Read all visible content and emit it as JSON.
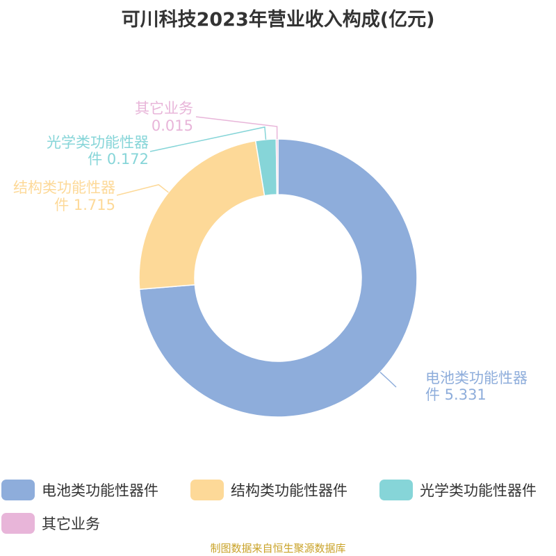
{
  "chart_data": {
    "type": "pie",
    "title": "可川科技2023年营业收入构成(亿元)",
    "categories": [
      "电池类功能性器件",
      "结构类功能性器件",
      "光学类功能性器件",
      "其它业务"
    ],
    "values": [
      5.331,
      1.715,
      0.172,
      0.015
    ],
    "labels": [
      {
        "line1": "电池类功能性器",
        "line2": "件 5.331"
      },
      {
        "line1": "结构类功能性器",
        "line2": "件 1.715"
      },
      {
        "line1": "光学类功能性器",
        "line2": "件 0.172"
      },
      {
        "line1": "其它业务",
        "line2": "0.015"
      }
    ],
    "colors": [
      "#8eaddb",
      "#fdd998",
      "#86d5d8",
      "#e8b5d9"
    ],
    "donut": true,
    "legend_placement": "bottom"
  },
  "source": "制图数据来自恒生聚源数据库"
}
